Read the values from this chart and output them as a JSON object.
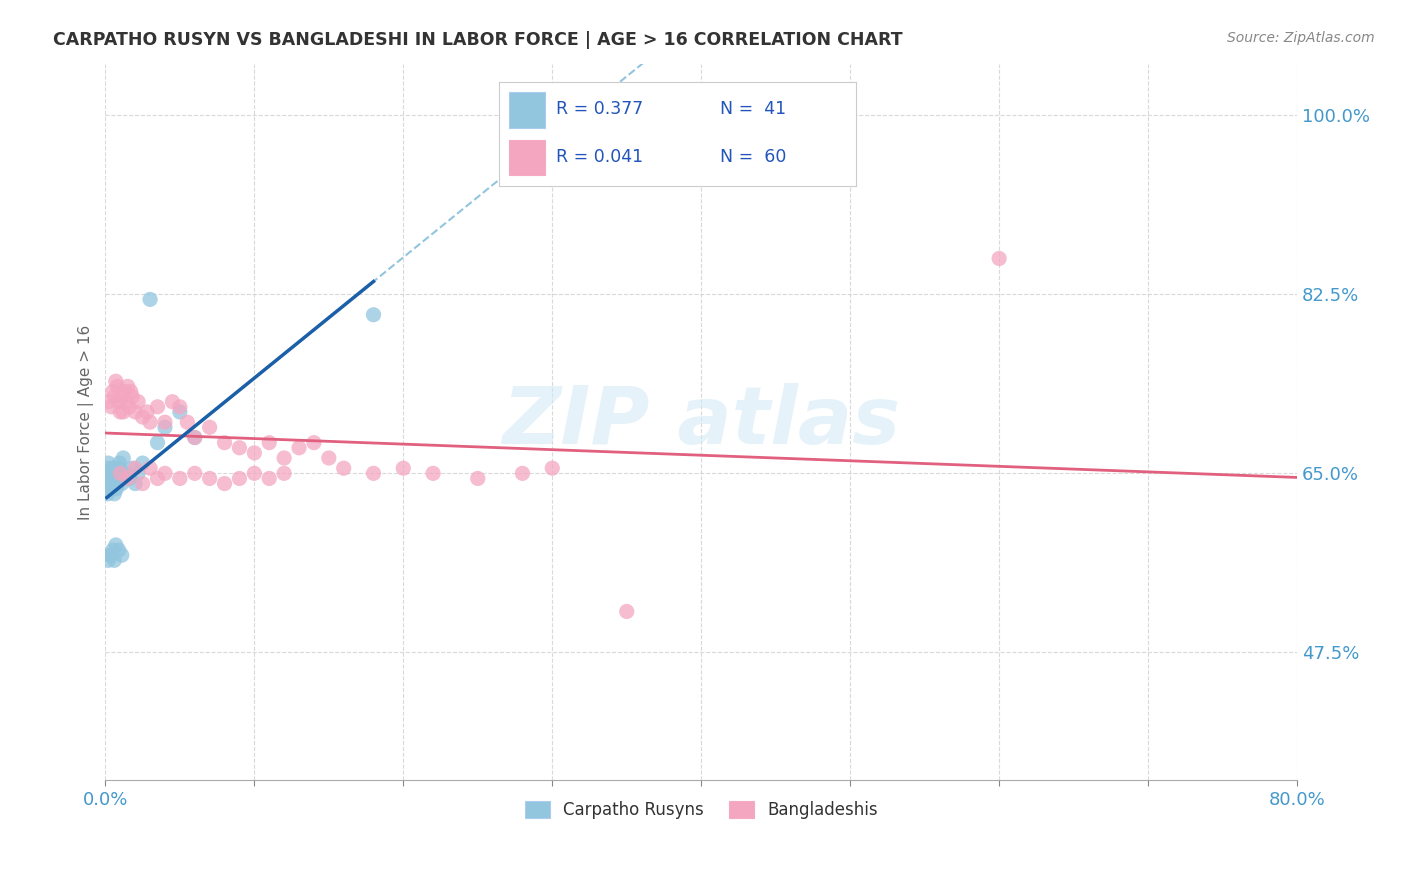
{
  "title": "CARPATHO RUSYN VS BANGLADESHI IN LABOR FORCE | AGE > 16 CORRELATION CHART",
  "source": "Source: ZipAtlas.com",
  "ylabel_label": "In Labor Force | Age > 16",
  "blue_color": "#92c5de",
  "pink_color": "#f4a6c0",
  "blue_line_color": "#1a5fa8",
  "pink_line_color": "#e0607e",
  "dashed_line_color": "#92c5de",
  "xmin": 0.0,
  "xmax": 80.0,
  "ymin": 35.0,
  "ymax": 105.0,
  "yticks": [
    47.5,
    65.0,
    82.5,
    100.0
  ],
  "xtick_positions": [
    0,
    10,
    20,
    30,
    40,
    50,
    60,
    70,
    80
  ],
  "blue_scatter_x": [
    0.1,
    0.15,
    0.2,
    0.25,
    0.3,
    0.35,
    0.4,
    0.45,
    0.5,
    0.55,
    0.6,
    0.65,
    0.7,
    0.75,
    0.8,
    0.85,
    0.9,
    0.95,
    1.0,
    1.1,
    1.2,
    1.4,
    1.6,
    1.8,
    2.0,
    2.2,
    2.5,
    3.0,
    3.5,
    4.0,
    5.0,
    6.0,
    0.3,
    0.5,
    0.7,
    0.9,
    1.1,
    0.2,
    0.4,
    0.6,
    18.0
  ],
  "blue_scatter_y": [
    64.5,
    63.0,
    66.0,
    65.5,
    64.0,
    63.5,
    65.0,
    64.0,
    65.5,
    64.5,
    63.0,
    65.0,
    64.5,
    63.5,
    65.0,
    64.0,
    65.5,
    66.0,
    65.0,
    64.0,
    66.5,
    65.0,
    64.5,
    65.5,
    64.0,
    65.0,
    66.0,
    82.0,
    68.0,
    69.5,
    71.0,
    68.5,
    57.0,
    57.5,
    58.0,
    57.5,
    57.0,
    56.5,
    57.0,
    56.5,
    80.5
  ],
  "pink_scatter_x": [
    0.2,
    0.4,
    0.5,
    0.6,
    0.7,
    0.8,
    0.9,
    1.0,
    1.1,
    1.2,
    1.3,
    1.4,
    1.5,
    1.6,
    1.7,
    1.8,
    2.0,
    2.2,
    2.5,
    2.8,
    3.0,
    3.5,
    4.0,
    4.5,
    5.0,
    5.5,
    6.0,
    7.0,
    8.0,
    9.0,
    10.0,
    11.0,
    12.0,
    13.0,
    14.0,
    15.0,
    16.0,
    18.0,
    20.0,
    22.0,
    25.0,
    28.0,
    30.0,
    35.0,
    60.0,
    1.0,
    1.5,
    2.0,
    2.5,
    3.0,
    3.5,
    4.0,
    5.0,
    6.0,
    7.0,
    8.0,
    9.0,
    10.0,
    11.0,
    12.0
  ],
  "pink_scatter_y": [
    72.0,
    71.5,
    73.0,
    72.5,
    74.0,
    73.5,
    72.0,
    71.0,
    72.5,
    71.0,
    73.0,
    72.0,
    73.5,
    71.5,
    73.0,
    72.5,
    71.0,
    72.0,
    70.5,
    71.0,
    70.0,
    71.5,
    70.0,
    72.0,
    71.5,
    70.0,
    68.5,
    69.5,
    68.0,
    67.5,
    67.0,
    68.0,
    66.5,
    67.5,
    68.0,
    66.5,
    65.5,
    65.0,
    65.5,
    65.0,
    64.5,
    65.0,
    65.5,
    51.5,
    86.0,
    65.0,
    64.5,
    65.5,
    64.0,
    65.5,
    64.5,
    65.0,
    64.5,
    65.0,
    64.5,
    64.0,
    64.5,
    65.0,
    64.5,
    65.0
  ]
}
